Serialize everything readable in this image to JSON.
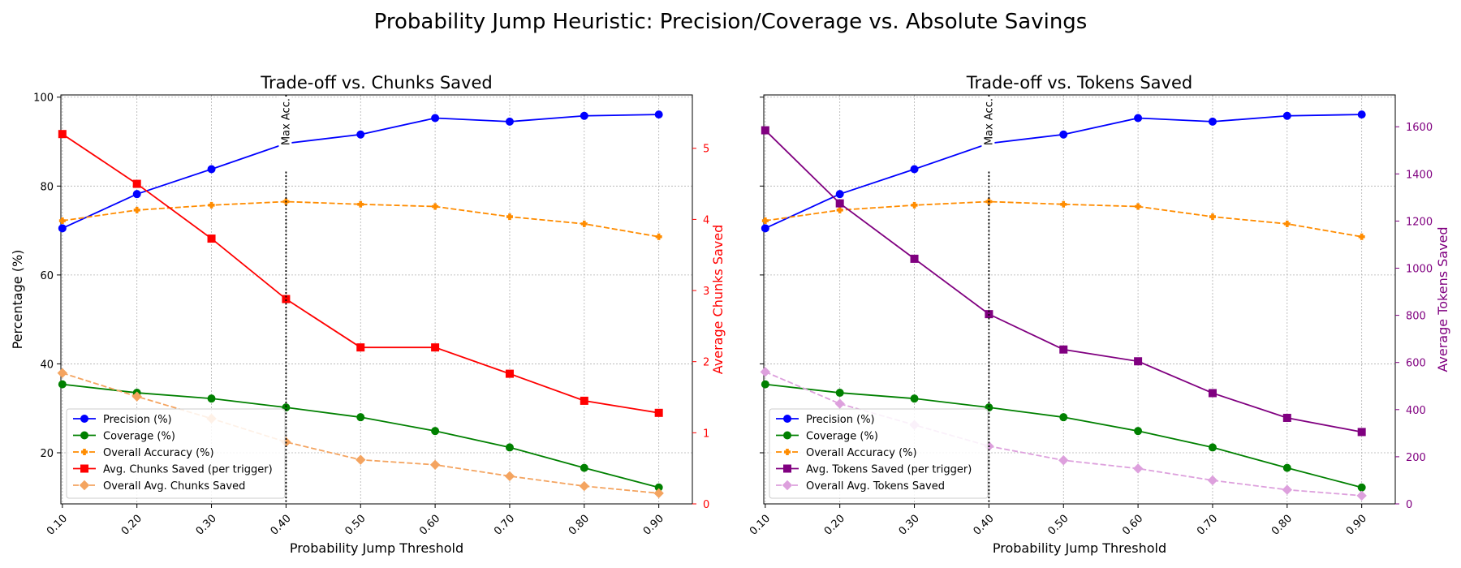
{
  "title": "Probability Jump Heuristic: Precision/Coverage vs. Absolute Savings",
  "chart_data": [
    {
      "type": "line",
      "title": "Trade-off vs. Chunks Saved",
      "xlabel": "Probability Jump Threshold",
      "ylabel": "Percentage (%)",
      "y2label": "Average Chunks Saved",
      "x": [
        0.1,
        0.2,
        0.3,
        0.4,
        0.5,
        0.6,
        0.7,
        0.8,
        0.9
      ],
      "x_tick_labels": [
        "0.10",
        "0.20",
        "0.30",
        "0.40",
        "0.50",
        "0.60",
        "0.70",
        "0.80",
        "0.90"
      ],
      "xlim": [
        0.098,
        0.945
      ],
      "ylim": [
        8.5,
        100.5
      ],
      "y_ticks": [
        20,
        40,
        60,
        80,
        100
      ],
      "y2lim": [
        0,
        5.75
      ],
      "y2_ticks": [
        0,
        1,
        2,
        3,
        4,
        5
      ],
      "grid": true,
      "legend_position": "lower-left",
      "vline": {
        "x": 0.4,
        "label": "Max Acc."
      },
      "series": [
        {
          "name": "Precision (%)",
          "axis": "left",
          "color": "#0000ff",
          "linestyle": "solid",
          "marker": "circle",
          "values": [
            70.5,
            78.2,
            83.8,
            89.6,
            91.6,
            95.3,
            94.5,
            95.8,
            96.1
          ]
        },
        {
          "name": "Coverage (%)",
          "axis": "left",
          "color": "#008000",
          "linestyle": "solid",
          "marker": "circle",
          "values": [
            35.4,
            33.5,
            32.2,
            30.2,
            28.0,
            24.9,
            21.2,
            16.6,
            12.2
          ]
        },
        {
          "name": "Overall Accuracy (%)",
          "axis": "left",
          "color": "#ff8c00",
          "linestyle": "dashed",
          "marker": "plus",
          "values": [
            72.2,
            74.6,
            75.7,
            76.5,
            75.9,
            75.4,
            73.1,
            71.5,
            68.6
          ]
        },
        {
          "name": "Avg. Chunks Saved (per trigger)",
          "axis": "right",
          "color": "#ff0000",
          "linestyle": "solid",
          "marker": "square",
          "values": [
            5.2,
            4.5,
            3.73,
            2.88,
            2.2,
            2.2,
            1.83,
            1.45,
            1.28
          ]
        },
        {
          "name": "Overall Avg. Chunks Saved",
          "axis": "right",
          "color": "#f4a460",
          "linestyle": "dashed",
          "marker": "diamond",
          "values": [
            1.84,
            1.51,
            1.2,
            0.87,
            0.62,
            0.55,
            0.39,
            0.25,
            0.15
          ]
        }
      ]
    },
    {
      "type": "line",
      "title": "Trade-off vs. Tokens Saved",
      "xlabel": "Probability Jump Threshold",
      "ylabel": "",
      "y2label": "Average Tokens Saved",
      "x": [
        0.1,
        0.2,
        0.3,
        0.4,
        0.5,
        0.6,
        0.7,
        0.8,
        0.9
      ],
      "x_tick_labels": [
        "0.10",
        "0.20",
        "0.30",
        "0.40",
        "0.50",
        "0.60",
        "0.70",
        "0.80",
        "0.90"
      ],
      "xlim": [
        0.098,
        0.945
      ],
      "ylim": [
        8.5,
        100.5
      ],
      "y_ticks": [
        20,
        40,
        60,
        80,
        100
      ],
      "y2lim": [
        0,
        1735
      ],
      "y2_ticks": [
        0,
        200,
        400,
        600,
        800,
        1000,
        1200,
        1400,
        1600
      ],
      "grid": true,
      "legend_position": "lower-left",
      "vline": {
        "x": 0.4,
        "label": "Max Acc."
      },
      "series": [
        {
          "name": "Precision (%)",
          "axis": "left",
          "color": "#0000ff",
          "linestyle": "solid",
          "marker": "circle",
          "values": [
            70.5,
            78.2,
            83.8,
            89.6,
            91.6,
            95.3,
            94.5,
            95.8,
            96.1
          ]
        },
        {
          "name": "Coverage (%)",
          "axis": "left",
          "color": "#008000",
          "linestyle": "solid",
          "marker": "circle",
          "values": [
            35.4,
            33.5,
            32.2,
            30.2,
            28.0,
            24.9,
            21.2,
            16.6,
            12.2
          ]
        },
        {
          "name": "Overall Accuracy (%)",
          "axis": "left",
          "color": "#ff8c00",
          "linestyle": "dashed",
          "marker": "plus",
          "values": [
            72.2,
            74.6,
            75.7,
            76.5,
            75.9,
            75.4,
            73.1,
            71.5,
            68.6
          ]
        },
        {
          "name": "Avg. Tokens Saved (per trigger)",
          "axis": "right",
          "color": "#800080",
          "linestyle": "solid",
          "marker": "square",
          "values": [
            1585,
            1275,
            1040,
            805,
            655,
            605,
            470,
            365,
            305
          ]
        },
        {
          "name": "Overall Avg. Tokens Saved",
          "axis": "right",
          "color": "#dda0dd",
          "linestyle": "dashed",
          "marker": "diamond",
          "values": [
            560,
            425,
            335,
            245,
            185,
            150,
            100,
            60,
            35
          ]
        }
      ]
    }
  ]
}
